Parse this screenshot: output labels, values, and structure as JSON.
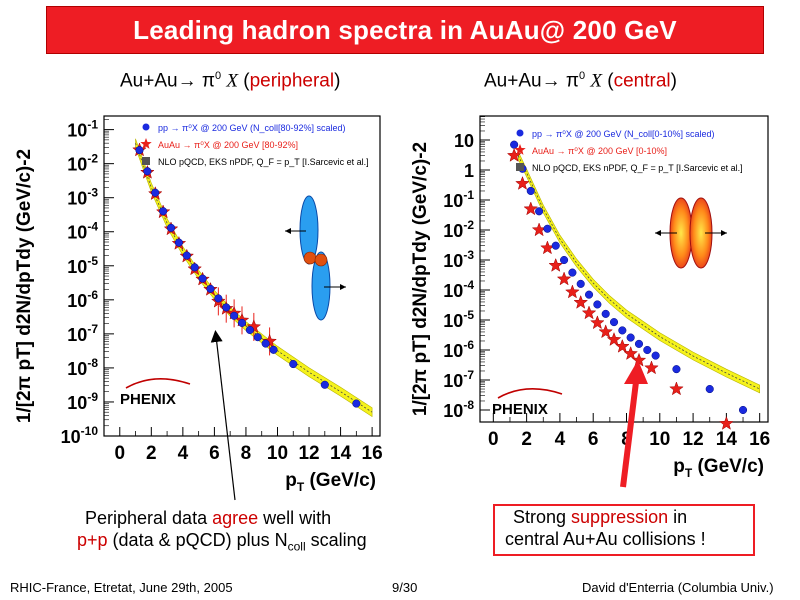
{
  "slide": {
    "title": "Leading hadron spectra in AuAu@ 200 GeV",
    "footer_left": "RHIC-France, Etretat, June 29th, 2005",
    "footer_center": "9/30",
    "footer_right": "David d'Enterria (Columbia Univ.)",
    "annotation_left_line1_a": "Peripheral data ",
    "annotation_left_line1_b": "agree",
    "annotation_left_line1_c": " well with",
    "annotation_left_line2_a": "p+p",
    "annotation_left_line2_b": " (data & pQCD) plus N",
    "annotation_left_line2_sub": "coll",
    "annotation_left_line2_c": " scaling",
    "annotation_right_line1_a": "Strong ",
    "annotation_right_line1_b": "suppression",
    "annotation_right_line1_c": " in",
    "annotation_right_line2": "central Au+Au collisions !",
    "colors": {
      "title_bg": "#ee1d24",
      "accent_red": "#cc0000",
      "pp_blue": "#1a2adf",
      "auau_red": "#e8201a",
      "band_yellow": "#f5f21c"
    }
  },
  "panels": [
    {
      "subtitle_a": "Au+Au",
      "subtitle_arrow": "→",
      "subtitle_pi": "π",
      "subtitle_sup": "0",
      "subtitle_x": "X",
      "subtitle_b": " (",
      "subtitle_tag": "peripheral",
      "subtitle_c": ")",
      "logo": "PHENIX",
      "legend": [
        {
          "text": "pp → π⁰X @ 200 GeV (N_coll[80-92%] scaled)",
          "color": "#1a2adf",
          "marker": "circle"
        },
        {
          "text": "AuAu → π⁰X @ 200 GeV [80-92%]",
          "color": "#e8201a",
          "marker": "star"
        },
        {
          "text": "NLO pQCD, EKS nPDF, Q_F = p_T [I.Sarcevic et al.]",
          "color": "#000000",
          "marker": "square"
        }
      ]
    },
    {
      "subtitle_a": "Au+Au",
      "subtitle_arrow": "→",
      "subtitle_pi": "π",
      "subtitle_sup": "0",
      "subtitle_x": "X",
      "subtitle_b": " (",
      "subtitle_tag": "central",
      "subtitle_c": ")",
      "logo": "PHENIX",
      "legend": [
        {
          "text": "pp → π⁰X @ 200 GeV (N_coll[0-10%] scaled)",
          "color": "#1a2adf",
          "marker": "circle"
        },
        {
          "text": "AuAu → π⁰X @ 200 GeV [0-10%]",
          "color": "#e8201a",
          "marker": "star"
        },
        {
          "text": "NLO pQCD, EKS nPDF, Q_F = p_T [I.Sarcevic et al.]",
          "color": "#000000",
          "marker": "square"
        }
      ]
    }
  ],
  "chart_data": [
    {
      "type": "scatter",
      "title": "Au+Au→π0 X (peripheral)",
      "xlabel": "pT (GeV/c)",
      "ylabel": "1/[2π pT] d2N/dpTdy (GeV/c)-2",
      "xlim": [
        -1,
        16.5
      ],
      "ylim_log10": [
        -10,
        -0.6
      ],
      "yscale": "log",
      "xticks": [
        0,
        2,
        4,
        6,
        8,
        10,
        12,
        14,
        16
      ],
      "yticks_log10": [
        -10,
        -9,
        -8,
        -7,
        -6,
        -5,
        -4,
        -3,
        -2,
        -1
      ],
      "series": [
        {
          "name": "pp → π0X @ 200 GeV (Ncoll[80-92%] scaled)",
          "marker": "circle",
          "color": "#1a2adf",
          "x": [
            1.25,
            1.75,
            2.25,
            2.75,
            3.25,
            3.75,
            4.25,
            4.75,
            5.25,
            5.75,
            6.25,
            6.75,
            7.25,
            7.75,
            8.25,
            8.75,
            9.25,
            9.75,
            11,
            13,
            15
          ],
          "y": [
            0.025,
            0.006,
            0.0014,
            0.0004,
            0.00013,
            4.8e-05,
            2e-05,
            9e-06,
            4.2e-06,
            2.1e-06,
            1.1e-06,
            6e-07,
            3.4e-07,
            2.1e-07,
            1.3e-07,
            8e-08,
            5.2e-08,
            3.4e-08,
            1.3e-08,
            3.2e-09,
            9e-10
          ]
        },
        {
          "name": "AuAu → π0X @ 200 GeV [80-92%]",
          "marker": "star",
          "color": "#e8201a",
          "x": [
            1.25,
            1.75,
            2.25,
            2.75,
            3.25,
            3.75,
            4.25,
            4.75,
            5.25,
            5.75,
            6.25,
            6.75,
            7.25,
            7.75,
            8.5,
            9.5
          ],
          "y": [
            0.025,
            0.0055,
            0.0013,
            0.00038,
            0.00012,
            4.5e-05,
            1.9e-05,
            8e-06,
            4e-06,
            2e-06,
            9e-07,
            5.5e-07,
            4e-07,
            2.5e-07,
            1.6e-07,
            6e-08
          ]
        },
        {
          "name": "NLO pQCD, EKS nPDF, QF = pT [I.Sarcevic et al.]",
          "type": "band",
          "color": "#f5f21c",
          "x": [
            1,
            2,
            3,
            4,
            5,
            6,
            7,
            8,
            10,
            12,
            14,
            16
          ],
          "y": [
            0.04,
            0.002,
            0.00018,
            2.7e-05,
            5.5e-06,
            1.4e-06,
            4.5e-07,
            1.7e-07,
            3.2e-08,
            7.5e-09,
            2e-09,
            5e-10
          ]
        }
      ]
    },
    {
      "type": "scatter",
      "title": "Au+Au→π0 X (central)",
      "xlabel": "pT (GeV/c)",
      "ylabel": "1/[2π pT] d2N/dpTdy (GeV/c)-2",
      "xlim": [
        -0.8,
        16.5
      ],
      "ylim_log10": [
        -8.4,
        1.8
      ],
      "yscale": "log",
      "xticks": [
        0,
        2,
        4,
        6,
        8,
        10,
        12,
        14,
        16
      ],
      "yticks_log10": [
        -8,
        -7,
        -6,
        -5,
        -4,
        -3,
        -2,
        -1,
        0,
        1
      ],
      "series": [
        {
          "name": "pp → π0X @ 200 GeV (Ncoll[0-10%] scaled)",
          "marker": "circle",
          "color": "#1a2adf",
          "x": [
            1.25,
            1.75,
            2.25,
            2.75,
            3.25,
            3.75,
            4.25,
            4.75,
            5.25,
            5.75,
            6.25,
            6.75,
            7.25,
            7.75,
            8.25,
            8.75,
            9.25,
            9.75,
            11,
            13,
            15
          ],
          "y": [
            7,
            1.1,
            0.2,
            0.042,
            0.011,
            0.003,
            0.001,
            0.00038,
            0.00016,
            7e-05,
            3.3e-05,
            1.6e-05,
            8.5e-06,
            4.5e-06,
            2.6e-06,
            1.6e-06,
            1e-06,
            6.5e-07,
            2.3e-07,
            5e-08,
            1e-08
          ]
        },
        {
          "name": "AuAu → π0X @ 200 GeV [0-10%]",
          "marker": "star",
          "color": "#e8201a",
          "x": [
            1.25,
            1.75,
            2.25,
            2.75,
            3.25,
            3.75,
            4.25,
            4.75,
            5.25,
            5.75,
            6.25,
            6.75,
            7.25,
            7.75,
            8.25,
            8.75,
            9.5,
            11,
            14
          ],
          "y": [
            3,
            0.35,
            0.05,
            0.01,
            0.0025,
            0.00065,
            0.00023,
            8.5e-05,
            3.8e-05,
            1.7e-05,
            8e-06,
            4e-06,
            2.2e-06,
            1.3e-06,
            7.5e-07,
            4.5e-07,
            2.5e-07,
            5e-08,
            3.5e-09
          ]
        },
        {
          "name": "NLO pQCD, EKS nPDF, QF = pT [I.Sarcevic et al.]",
          "type": "band",
          "color": "#f5f21c",
          "x": [
            1.5,
            2,
            3,
            4,
            5,
            6,
            7,
            8,
            10,
            12,
            14,
            16
          ],
          "y": [
            3,
            0.8,
            0.05,
            0.005,
            0.0008,
            0.00017,
            4.7e-05,
            1.6e-05,
            2.8e-06,
            6.3e-07,
            1.7e-07,
            5e-08
          ]
        }
      ]
    }
  ]
}
